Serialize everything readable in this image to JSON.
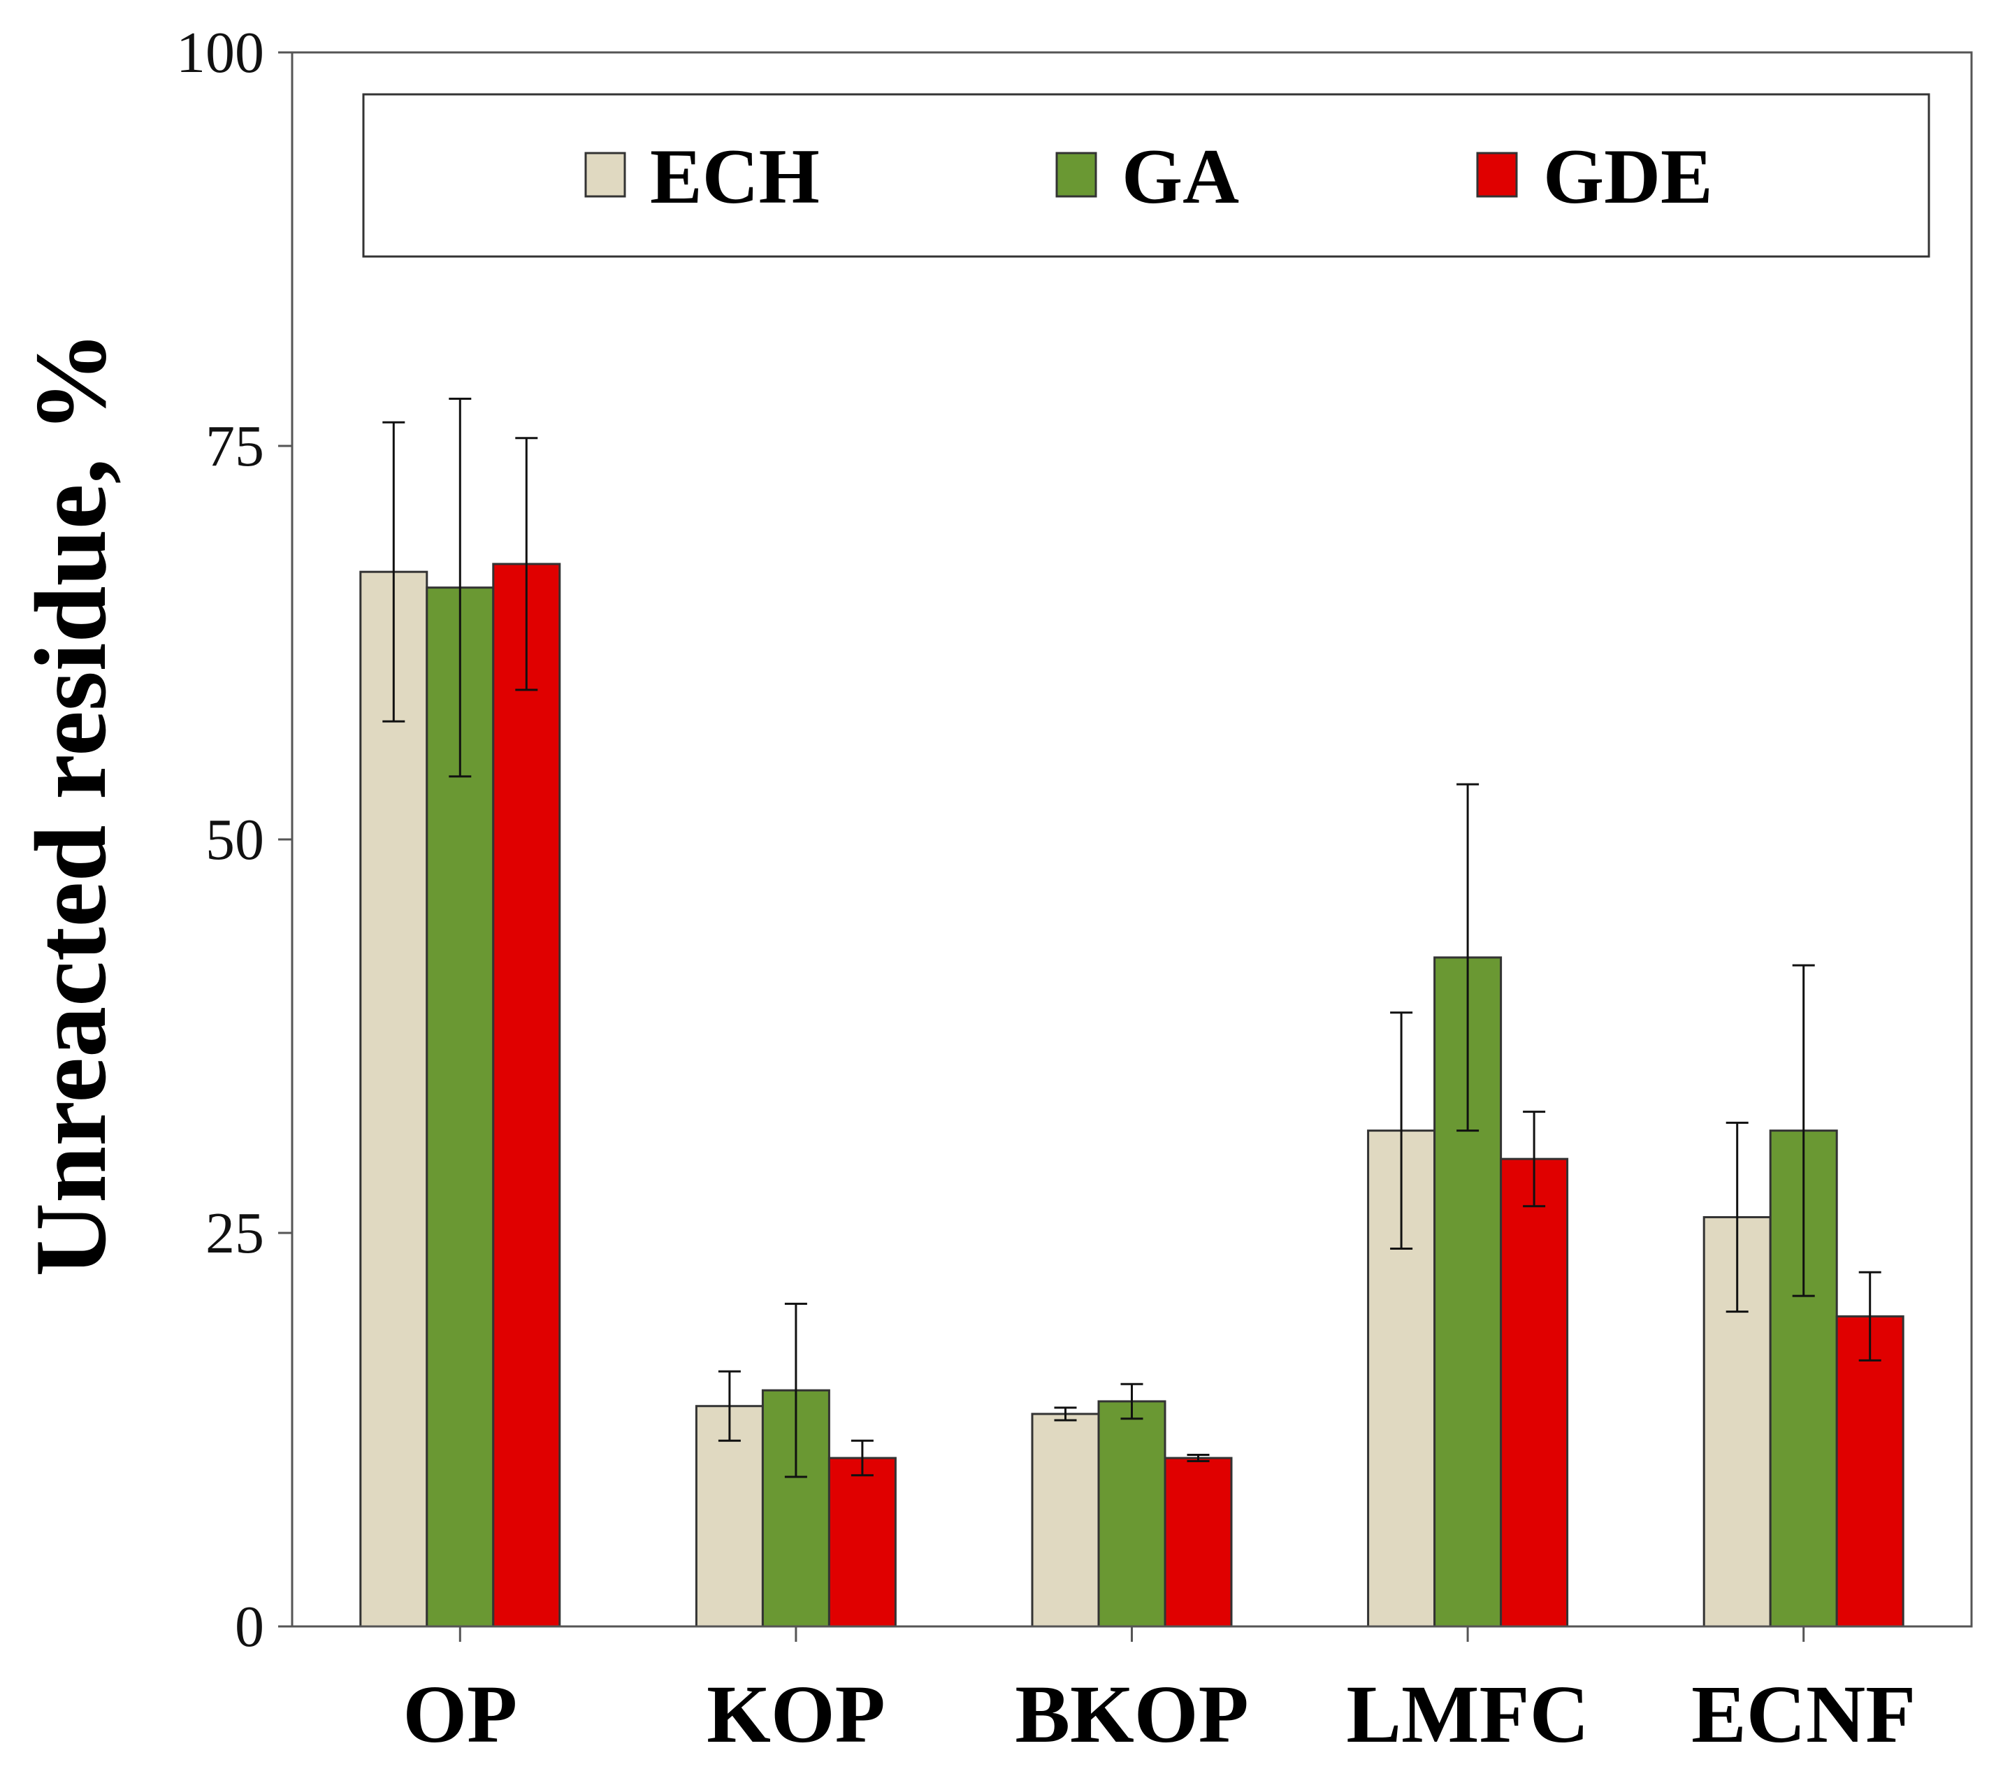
{
  "chart_data": {
    "type": "bar",
    "title": "",
    "xlabel": "",
    "ylabel": "Unreacted residue, %",
    "ylim": [
      0,
      100
    ],
    "yticks": [
      "0",
      "25",
      "50",
      "75",
      "100"
    ],
    "grid": false,
    "legend_position": "top",
    "categories": [
      "OP",
      "KOP",
      "BKOP",
      "LMFC",
      "ECNF"
    ],
    "series": [
      {
        "name": "ECH",
        "color": "#e0d9c1",
        "values": [
          67.0,
          14.0,
          13.5,
          31.5,
          26.0
        ],
        "errors": [
          9.5,
          2.2,
          0.4,
          7.5,
          6.0
        ]
      },
      {
        "name": "GA",
        "color": "#6a9833",
        "values": [
          66.0,
          15.0,
          14.3,
          42.5,
          31.5
        ],
        "errors": [
          12.0,
          5.5,
          1.1,
          11.0,
          10.5
        ]
      },
      {
        "name": "GDE",
        "color": "#e00000",
        "values": [
          67.5,
          10.7,
          10.7,
          29.7,
          19.7
        ],
        "errors": [
          8.0,
          1.1,
          0.2,
          3.0,
          2.8
        ]
      }
    ]
  }
}
